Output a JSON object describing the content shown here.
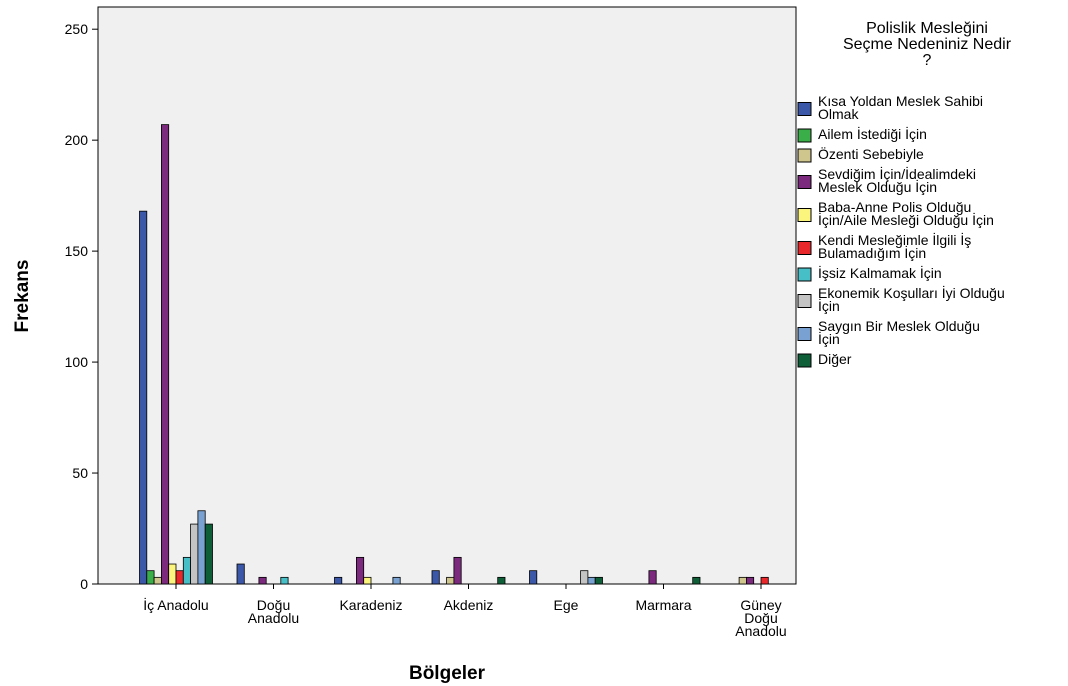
{
  "chart_data": {
    "type": "bar",
    "xlabel": "Bölgeler",
    "ylabel": "Frekans",
    "ylim": [
      0,
      260
    ],
    "yticks": [
      0,
      50,
      100,
      150,
      200,
      250
    ],
    "grid": false,
    "legend_position": "right",
    "legend_title": [
      "Polislik Mesleğini",
      "Seçme Nedeniniz Nedir",
      "?"
    ],
    "categories": [
      [
        "İç Anadolu"
      ],
      [
        "Doğu",
        "Anadolu"
      ],
      [
        "Karadeniz"
      ],
      [
        "Akdeniz"
      ],
      [
        "Ege"
      ],
      [
        "Marmara"
      ],
      [
        "Güney",
        "Doğu",
        "Anadolu"
      ]
    ],
    "series": [
      {
        "name": [
          "Kısa Yoldan Meslek Sahibi",
          "Olmak"
        ],
        "color": "#3b57a8",
        "values": [
          168,
          9,
          3,
          6,
          6,
          0,
          0
        ]
      },
      {
        "name": [
          "Ailem İstediği İçin"
        ],
        "color": "#3aae48",
        "values": [
          6,
          0,
          0,
          0,
          0,
          0,
          0
        ]
      },
      {
        "name": [
          "Özenti Sebebiyle"
        ],
        "color": "#cfc68d",
        "values": [
          3,
          0,
          0,
          3,
          0,
          0,
          3
        ]
      },
      {
        "name": [
          "Sevdiğim İçin/İdealimdeki",
          "Meslek Olduğu İçin"
        ],
        "color": "#7b2a7e",
        "values": [
          207,
          3,
          12,
          12,
          0,
          6,
          3
        ]
      },
      {
        "name": [
          "Baba-Anne Polis Olduğu",
          "İçin/Aile Mesleği Olduğu İçin"
        ],
        "color": "#fbf57e",
        "values": [
          9,
          0,
          3,
          0,
          0,
          0,
          0
        ]
      },
      {
        "name": [
          "Kendi Mesleğimle İlgili İş",
          "Bulamadığım İçin"
        ],
        "color": "#e8282b",
        "values": [
          6,
          0,
          0,
          0,
          0,
          0,
          3
        ]
      },
      {
        "name": [
          "İşsiz Kalmamak İçin"
        ],
        "color": "#47bfc6",
        "values": [
          12,
          3,
          0,
          0,
          0,
          0,
          0
        ]
      },
      {
        "name": [
          "Ekonemik Koşulları İyi Olduğu",
          "İçin"
        ],
        "color": "#c4c4c4",
        "values": [
          27,
          0,
          0,
          0,
          6,
          0,
          0
        ]
      },
      {
        "name": [
          "Saygın Bir Meslek Olduğu",
          "İçin"
        ],
        "color": "#79a2d3",
        "values": [
          33,
          0,
          3,
          0,
          3,
          0,
          0
        ]
      },
      {
        "name": [
          "Diğer"
        ],
        "color": "#0e5f37",
        "values": [
          27,
          0,
          0,
          3,
          3,
          3,
          0
        ]
      }
    ]
  }
}
